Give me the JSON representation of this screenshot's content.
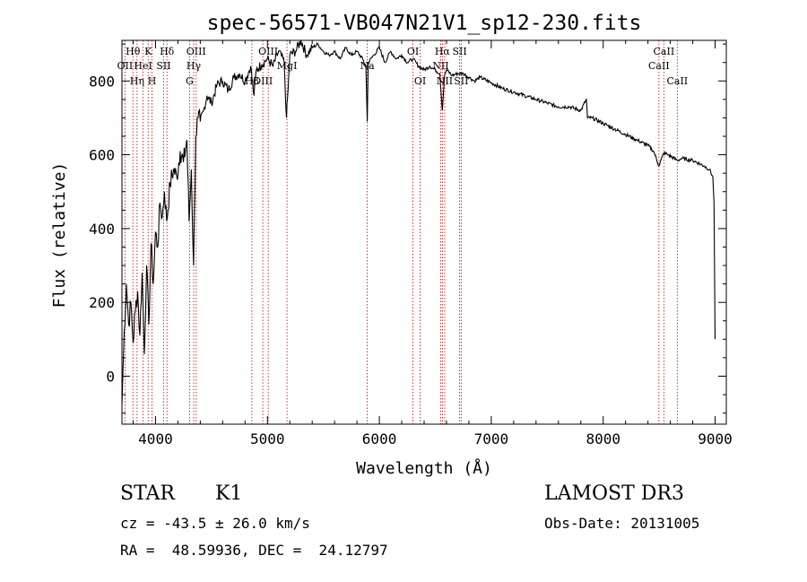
{
  "chart_data": {
    "type": "line",
    "title": "spec-56571-VB047N21V1_sp12-230.fits",
    "xlabel": "Wavelength (Å)",
    "ylabel": "Flux (relative)",
    "xlim": [
      3700,
      9100
    ],
    "ylim": [
      -130,
      910
    ],
    "x_ticks": [
      4000,
      5000,
      6000,
      7000,
      8000,
      9000
    ],
    "x_tick_labels": [
      "4000",
      "5000",
      "6000",
      "7000",
      "8000",
      "9000"
    ],
    "y_ticks": [
      0,
      200,
      400,
      600,
      800
    ],
    "y_tick_labels": [
      "0",
      "200",
      "400",
      "600",
      "800"
    ],
    "series": [
      {
        "name": "flux",
        "x": [
          3700,
          3720,
          3740,
          3760,
          3780,
          3800,
          3820,
          3840,
          3860,
          3880,
          3900,
          3920,
          3940,
          3960,
          3980,
          4000,
          4020,
          4040,
          4060,
          4080,
          4100,
          4130,
          4160,
          4190,
          4220,
          4250,
          4280,
          4300,
          4320,
          4340,
          4360,
          4380,
          4400,
          4430,
          4460,
          4500,
          4550,
          4600,
          4650,
          4700,
          4750,
          4800,
          4850,
          4880,
          4900,
          4950,
          5000,
          5050,
          5100,
          5150,
          5170,
          5185,
          5200,
          5250,
          5300,
          5350,
          5400,
          5450,
          5500,
          5550,
          5600,
          5650,
          5700,
          5750,
          5800,
          5850,
          5880,
          5892,
          5900,
          5950,
          6000,
          6050,
          6100,
          6150,
          6200,
          6250,
          6300,
          6350,
          6400,
          6450,
          6500,
          6540,
          6563,
          6580,
          6600,
          6650,
          6700,
          6750,
          6800,
          6850,
          6900,
          7000,
          7100,
          7200,
          7300,
          7400,
          7500,
          7600,
          7700,
          7800,
          7850,
          7860,
          7900,
          8000,
          8100,
          8200,
          8300,
          8400,
          8450,
          8498,
          8542,
          8580,
          8662,
          8700,
          8800,
          8900,
          8950,
          8980,
          8990,
          9000
        ],
        "y": [
          -80,
          120,
          250,
          140,
          200,
          90,
          180,
          230,
          110,
          280,
          60,
          300,
          140,
          360,
          250,
          390,
          350,
          470,
          430,
          500,
          420,
          520,
          560,
          540,
          610,
          580,
          640,
          420,
          560,
          300,
          650,
          700,
          690,
          720,
          760,
          740,
          790,
          800,
          775,
          810,
          820,
          800,
          840,
          760,
          830,
          845,
          860,
          840,
          880,
          850,
          700,
          780,
          870,
          880,
          910,
          870,
          890,
          900,
          880,
          870,
          880,
          860,
          890,
          870,
          880,
          860,
          840,
          690,
          850,
          870,
          890,
          850,
          880,
          860,
          870,
          850,
          860,
          840,
          830,
          840,
          830,
          820,
          720,
          810,
          830,
          815,
          820,
          820,
          810,
          800,
          810,
          795,
          780,
          770,
          760,
          750,
          740,
          730,
          730,
          720,
          750,
          700,
          700,
          685,
          670,
          655,
          640,
          625,
          610,
          570,
          605,
          600,
          585,
          590,
          585,
          570,
          560,
          540,
          470,
          100
        ]
      }
    ],
    "line_markers": [
      {
        "label": "Hθ",
        "x": 3798,
        "row": 1
      },
      {
        "label": "OII",
        "x": 3727,
        "row": 2
      },
      {
        "label": "Hη",
        "x": 3835,
        "row": 3
      },
      {
        "label": "HeI",
        "x": 3889,
        "row": 2
      },
      {
        "label": "K",
        "x": 3934,
        "row": 1
      },
      {
        "label": "H",
        "x": 3969,
        "row": 3
      },
      {
        "label": "Hδ",
        "x": 4102,
        "row": 1
      },
      {
        "label": "SII",
        "x": 4072,
        "row": 2
      },
      {
        "label": "OIII",
        "x": 4363,
        "row": 1
      },
      {
        "label": "Hγ",
        "x": 4341,
        "row": 2
      },
      {
        "label": "G",
        "x": 4304,
        "row": 3
      },
      {
        "label": "OIII",
        "x": 5007,
        "row": 1
      },
      {
        "label": "OIII",
        "x": 4959,
        "row": 3
      },
      {
        "label": "Hβ",
        "x": 4861,
        "row": 3
      },
      {
        "label": "MgI",
        "x": 5175,
        "row": 2
      },
      {
        "label": "Na",
        "x": 5892,
        "row": 2
      },
      {
        "label": "OI",
        "x": 6300,
        "row": 1
      },
      {
        "label": "OI",
        "x": 6364,
        "row": 3
      },
      {
        "label": "Hα",
        "x": 6563,
        "row": 1
      },
      {
        "label": "NII",
        "x": 6548,
        "row": 2
      },
      {
        "label": "NII",
        "x": 6584,
        "row": 3
      },
      {
        "label": "SII",
        "x": 6717,
        "row": 1
      },
      {
        "label": "SII",
        "x": 6731,
        "row": 3
      },
      {
        "label": "CaII",
        "x": 8498,
        "row": 2
      },
      {
        "label": "CaII",
        "x": 8542,
        "row": 1
      },
      {
        "label": "CaII",
        "x": 8662,
        "row": 3
      }
    ],
    "grid": false,
    "legend": "none"
  },
  "info": {
    "object_class": "STAR",
    "subclass": "K1",
    "survey": "LAMOST DR3",
    "redshift": "cz = -43.5 ± 26.0 km/s",
    "obs_date": "Obs-Date: 20131005",
    "coords": "RA =  48.59936, DEC =  24.12797"
  },
  "colors": {
    "spectrum": "#000000",
    "marker": "#cc0000",
    "background": "#ffffff"
  }
}
